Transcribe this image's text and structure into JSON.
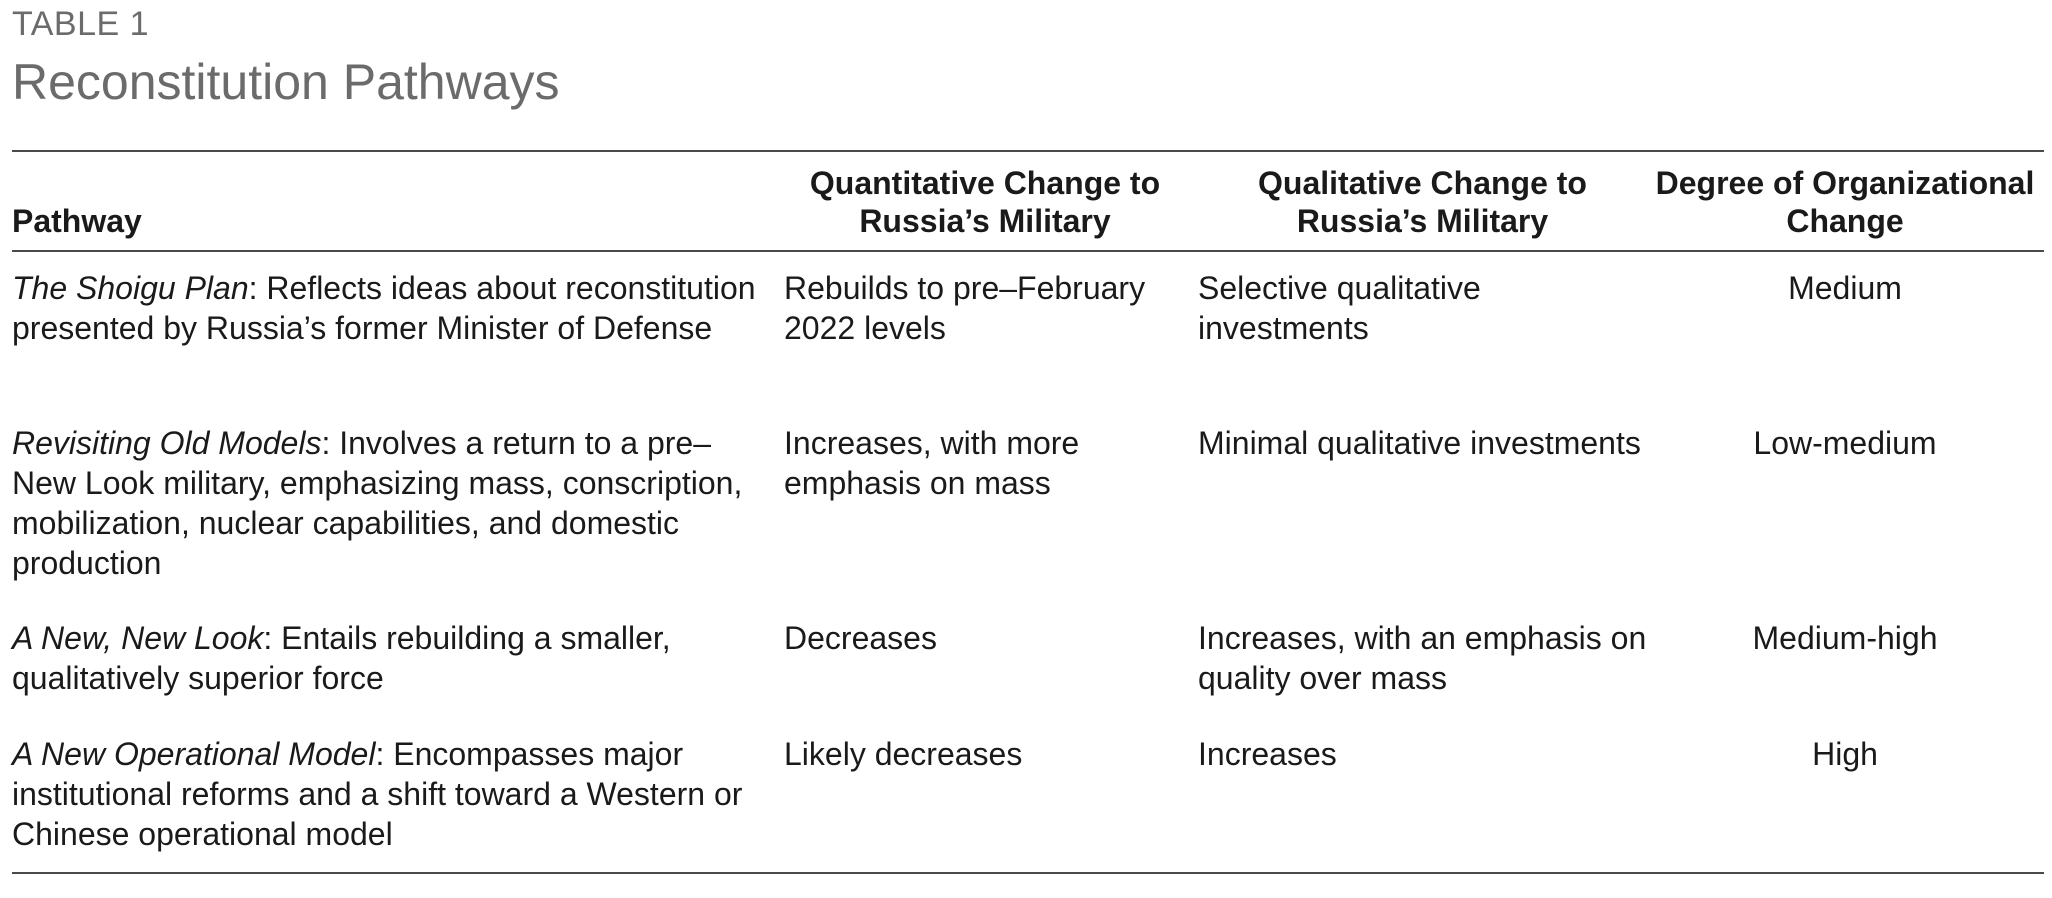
{
  "table_label": "TABLE 1",
  "title": "Reconstitution Pathways",
  "columns": [
    "Pathway",
    "Quantitative Change to Russia’s Military",
    "Qualitative Change to Russia’s Military",
    "Degree of Organizational Change"
  ],
  "rows": [
    {
      "name": "The Shoigu Plan",
      "description": ": Reflects ideas about reconstitution presented by Russia’s former Minister of Defense",
      "quantitative": "Rebuilds to pre–February 2022 levels",
      "qualitative": "Selective qualitative investments",
      "degree": "Medium"
    },
    {
      "name": "Revisiting Old Models",
      "description": ": Involves a return to a pre–New Look military, emphasizing mass, conscription, mobilization, nuclear capabilities, and domestic production",
      "quantitative": "Increases, with more emphasis on mass",
      "qualitative": "Minimal qualitative investments",
      "degree": "Low-medium"
    },
    {
      "name": "A New, New Look",
      "description": ": Entails rebuilding a smaller, qualitatively superior force",
      "quantitative": "Decreases",
      "qualitative": "Increases, with an emphasis on quality over mass",
      "degree": "Medium-high"
    },
    {
      "name": "A New Operational Model",
      "description": ": Encompasses major institutional reforms and a shift toward a Western or Chinese operational model",
      "quantitative": "Likely decreases",
      "qualitative": "Increases",
      "degree": "High"
    }
  ]
}
